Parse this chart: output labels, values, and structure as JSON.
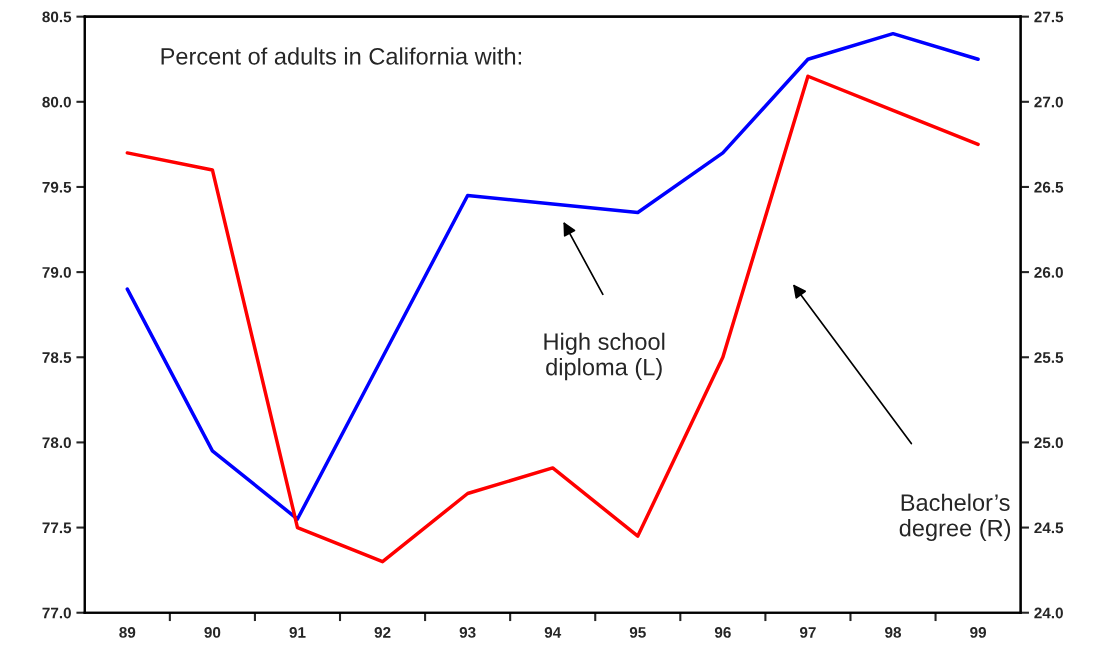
{
  "chart_data": {
    "type": "line",
    "title": "Percent of adults in California with:",
    "categories": [
      "89",
      "90",
      "91",
      "92",
      "93",
      "94",
      "95",
      "96",
      "97",
      "98",
      "99"
    ],
    "series": [
      {
        "color": "#0000ff",
        "values": [
          78.9,
          77.95,
          77.55,
          78.5,
          79.45,
          79.4,
          79.35,
          79.7,
          80.25,
          80.4,
          80.25
        ]
      },
      {
        "color": "#ff0000",
        "axis": "y2",
        "values": [
          26.7,
          26.6,
          24.5,
          24.3,
          24.7,
          24.85,
          24.45,
          25.5,
          27.15,
          26.95,
          26.75
        ]
      }
    ],
    "annotations": [
      "High school\ndiploma (L)",
      "Bachelor’s\ndegree (R)"
    ],
    "ylim": [
      77.0,
      80.5
    ],
    "yticks": [
      {
        "value": 77.0,
        "label": "77.0"
      },
      {
        "value": 77.5,
        "label": "77.5"
      },
      {
        "value": 78.0,
        "label": "78.0"
      },
      {
        "value": 78.5,
        "label": "78.5"
      },
      {
        "value": 79.0,
        "label": "79.0"
      },
      {
        "value": 79.5,
        "label": "79.5"
      },
      {
        "value": 80.0,
        "label": "80.0"
      },
      {
        "value": 80.5,
        "label": "80.5"
      }
    ],
    "y2lim": [
      24.0,
      27.5
    ],
    "y2ticks": [
      {
        "value": 24.0,
        "label": "24.0"
      },
      {
        "value": 24.5,
        "label": "24.5"
      },
      {
        "value": 25.0,
        "label": "25.0"
      },
      {
        "value": 25.5,
        "label": "25.5"
      },
      {
        "value": 26.0,
        "label": "26.0"
      },
      {
        "value": 26.5,
        "label": "26.5"
      },
      {
        "value": 27.0,
        "label": "27.0"
      },
      {
        "value": 27.5,
        "label": "27.5"
      }
    ],
    "grid": false,
    "legend": false
  }
}
